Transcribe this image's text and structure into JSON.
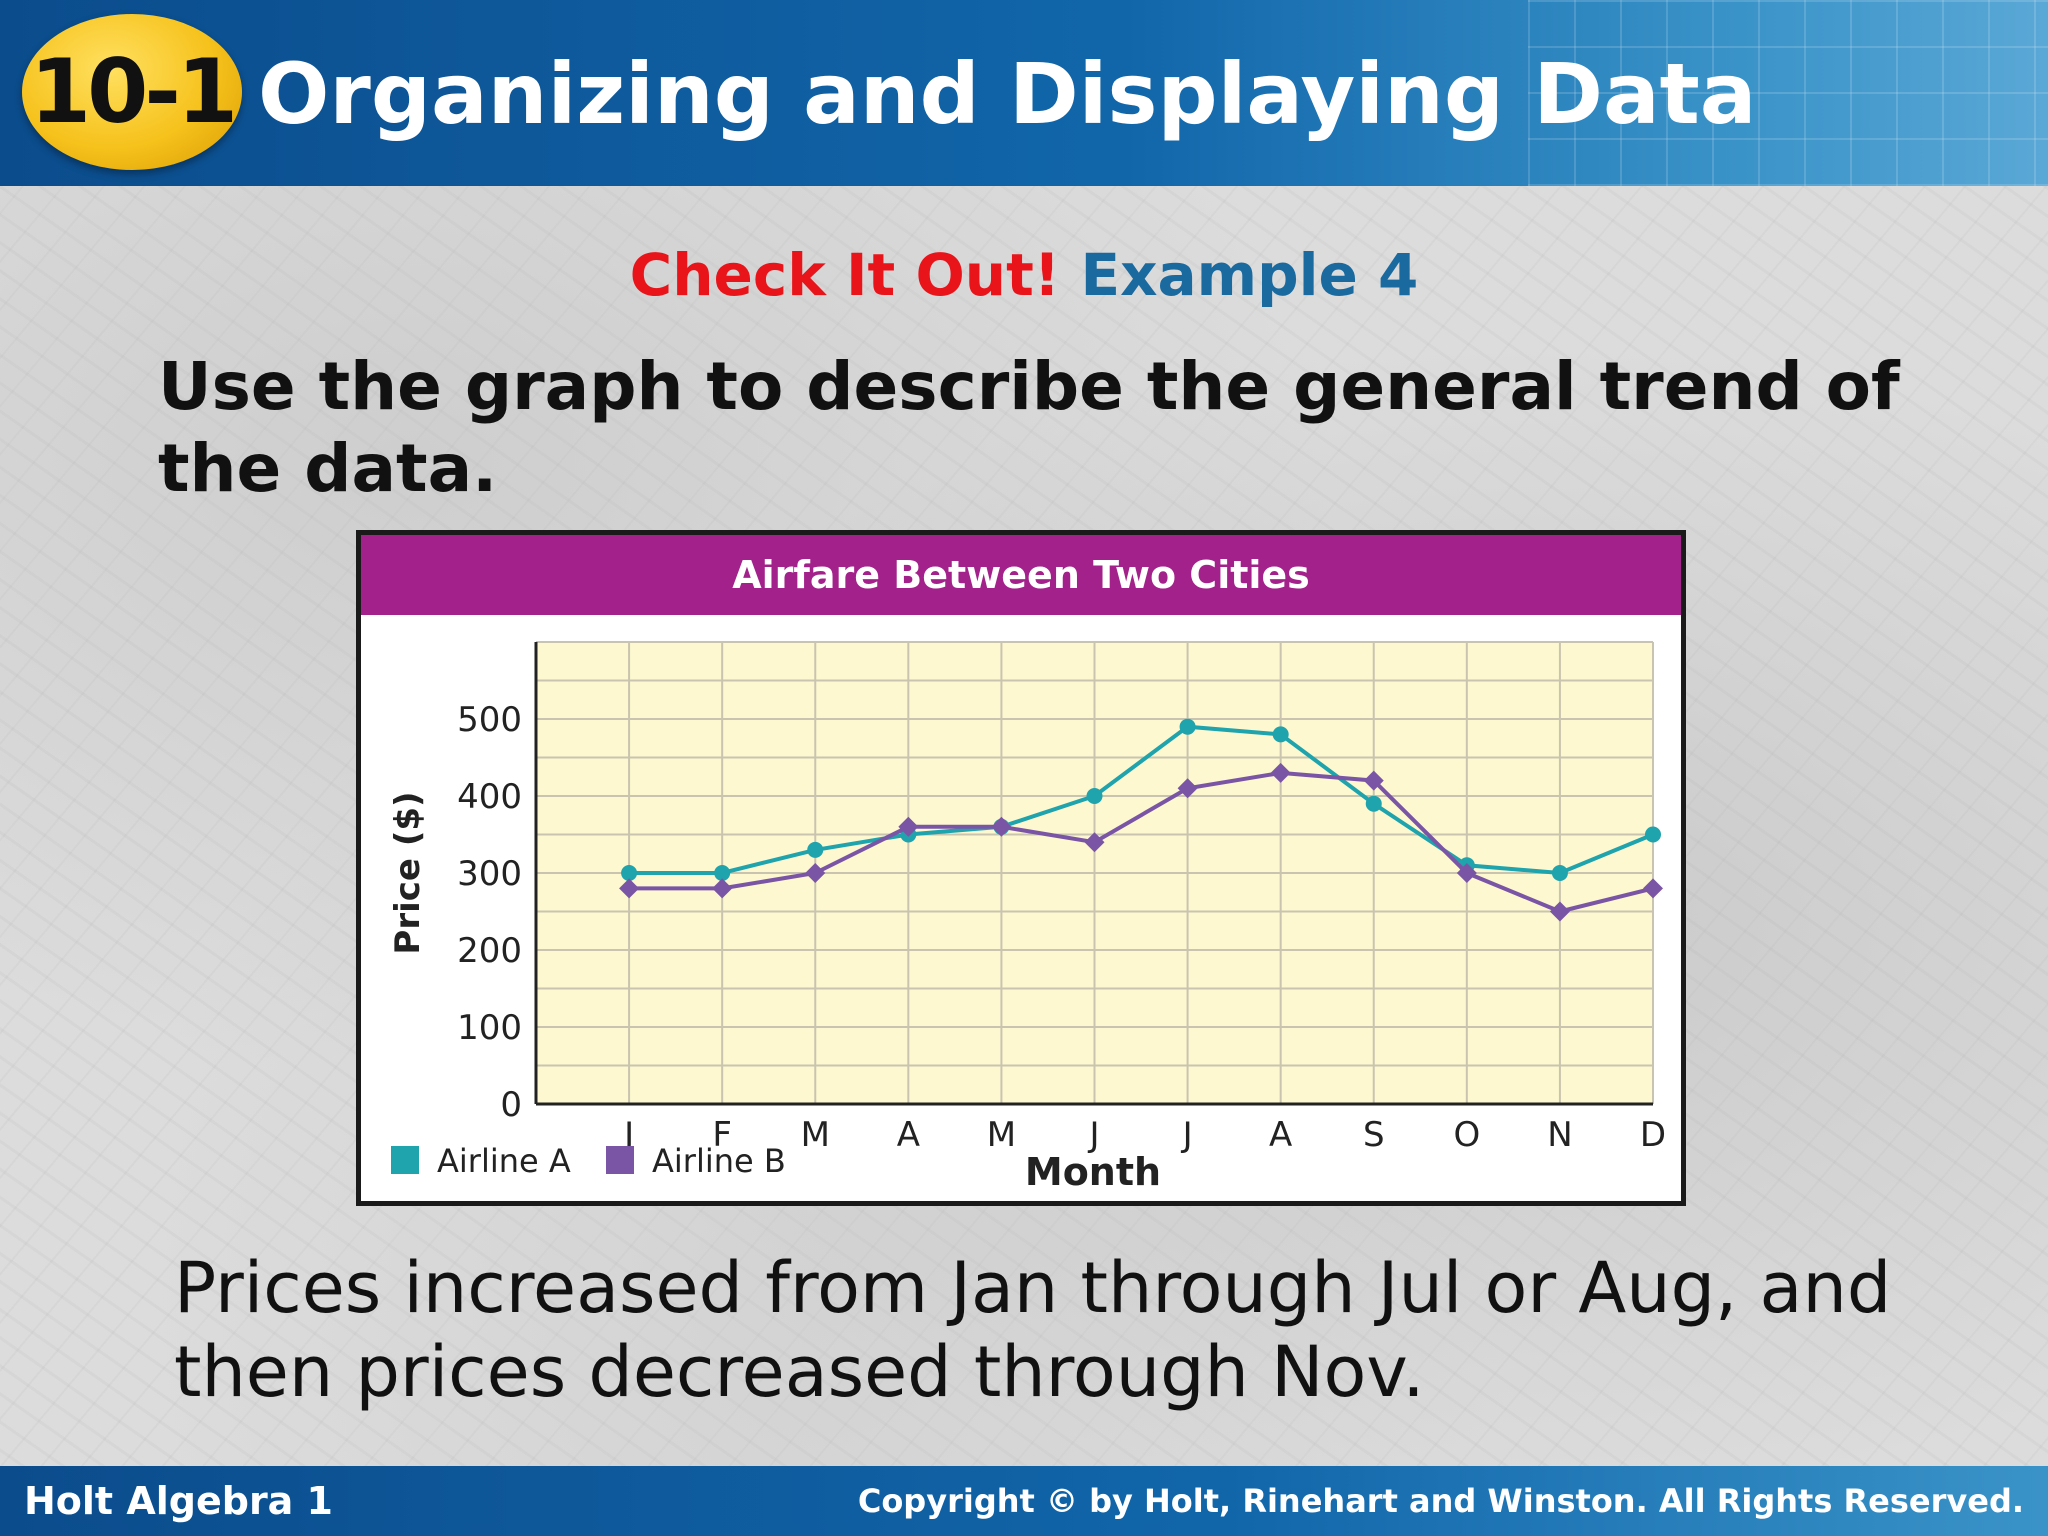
{
  "header": {
    "lesson_badge": "10-1",
    "title": "Organizing and Displaying Data"
  },
  "section": {
    "check_label": "Check It Out!",
    "example_label": "Example 4"
  },
  "prompt": "Use the graph to describe the general trend of the data.",
  "answer": "Prices increased from Jan through Jul or Aug, and then prices decreased through Nov.",
  "footer": {
    "left": "Holt Algebra 1",
    "right": "Copyright © by Holt, Rinehart and Winston. All Rights Reserved."
  },
  "colors": {
    "airline_a": "#1fa3ad",
    "airline_b": "#7a55a6",
    "plot_bg": "#fdf8cf",
    "title_bar": "#a3218a"
  },
  "chart_data": {
    "type": "line",
    "title": "Airfare Between Two Cities",
    "xlabel": "Month",
    "ylabel": "Price ($)",
    "categories": [
      "J",
      "F",
      "M",
      "A",
      "M",
      "J",
      "J",
      "A",
      "S",
      "O",
      "N",
      "D"
    ],
    "yticks": [
      0,
      100,
      200,
      300,
      400,
      500
    ],
    "ylim": [
      0,
      600
    ],
    "grid": true,
    "legend": "bottom-left",
    "series": [
      {
        "name": "Airline A",
        "color": "#1fa3ad",
        "marker": "circle",
        "values": [
          300,
          300,
          330,
          350,
          360,
          400,
          490,
          480,
          390,
          310,
          300,
          350
        ]
      },
      {
        "name": "Airline B",
        "color": "#7a55a6",
        "marker": "diamond",
        "values": [
          280,
          280,
          300,
          360,
          360,
          340,
          410,
          430,
          420,
          300,
          250,
          280
        ]
      }
    ]
  }
}
